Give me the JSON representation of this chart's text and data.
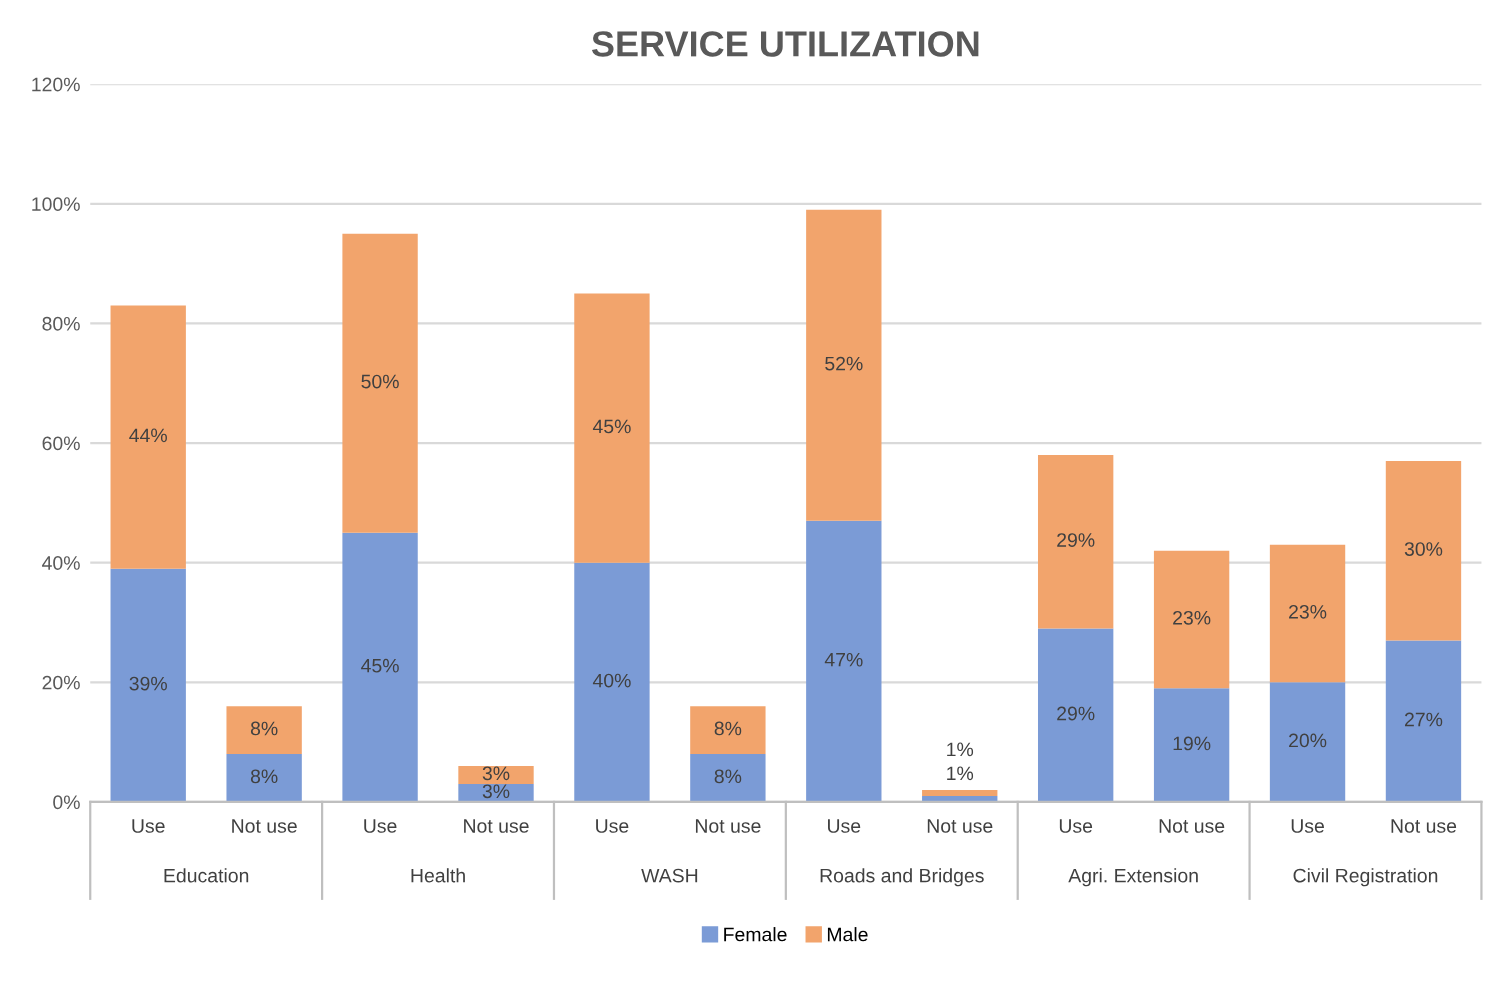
{
  "chart_data": {
    "type": "bar",
    "title": "SERVICE UTILIZATION",
    "stacked": true,
    "categories": [
      "Use",
      "Not use",
      "Use",
      "Not use",
      "Use",
      "Not use",
      "Use",
      "Not use",
      "Use",
      "Not use",
      "Use",
      "Not use"
    ],
    "annotations": [
      "Education",
      "Health",
      "WASH",
      "Roads and Bridges",
      "Agri. Extension",
      "Civil Registration"
    ],
    "series": [
      {
        "name": "Female",
        "color": "#7b9bd6",
        "values": [
          39,
          8,
          45,
          3,
          40,
          8,
          47,
          1,
          29,
          19,
          20,
          27
        ],
        "value_labels": [
          "39%",
          "8%",
          "45%",
          "3%",
          "40%",
          "8%",
          "47%",
          "1%",
          "29%",
          "19%",
          "20%",
          "27%"
        ]
      },
      {
        "name": "Male",
        "color": "#f2a46c",
        "values": [
          44,
          8,
          50,
          3,
          45,
          8,
          52,
          1,
          29,
          23,
          23,
          30
        ],
        "value_labels": [
          "44%",
          "8%",
          "50%",
          "3%",
          "45%",
          "8%",
          "52%",
          "1%",
          "29%",
          "23%",
          "23%",
          "30%"
        ]
      }
    ],
    "ylim": [
      0,
      120
    ],
    "yticks": [
      {
        "value": 0,
        "label": "0%"
      },
      {
        "value": 20,
        "label": "20%"
      },
      {
        "value": 40,
        "label": "40%"
      },
      {
        "value": 60,
        "label": "60%"
      },
      {
        "value": 80,
        "label": "80%"
      },
      {
        "value": 100,
        "label": "100%"
      },
      {
        "value": 120,
        "label": "120%"
      }
    ],
    "grid": "y",
    "legend": "bottom"
  }
}
